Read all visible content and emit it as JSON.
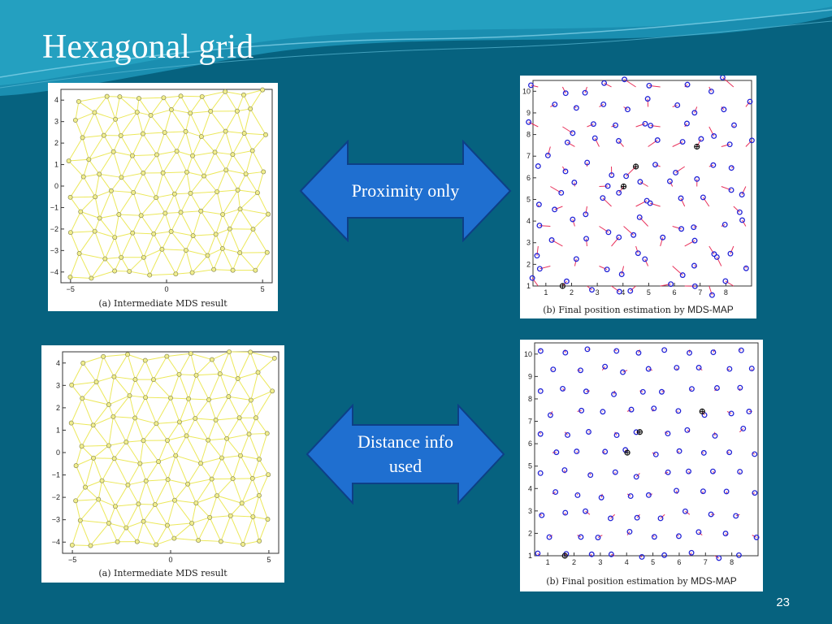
{
  "slide": {
    "title": "Hexagonal grid",
    "page_number": "23",
    "colors": {
      "background": "#06627f",
      "arrow_fill": "#1f6fd0",
      "arrow_stroke": "#0d3f86"
    }
  },
  "arrows": [
    {
      "label": "Proximity only"
    },
    {
      "label": "Distance info used"
    }
  ],
  "figures": {
    "mds_top": {
      "caption": "(a) Intermediate MDS result"
    },
    "mds_bottom": {
      "caption": "(a) Intermediate MDS result"
    },
    "map_top": {
      "caption_prefix": "(b) Final position estimation by",
      "caption_method": "MDS-MAP"
    },
    "map_bottom": {
      "caption_prefix": "(b) Final position estimation by",
      "caption_method": "MDS-MAP"
    }
  },
  "chart_data": [
    {
      "type": "scatter",
      "subtype": "network-graph",
      "xlim": [
        -5.5,
        5.5
      ],
      "ylim": [
        -4.5,
        4.5
      ],
      "xticks": [
        "-5",
        "0",
        "5"
      ],
      "yticks": [
        "4",
        "3",
        "2",
        "1",
        "0",
        "-1",
        "-2",
        "-3",
        "-4"
      ],
      "point_color": "#f2ef8e",
      "edge_color": "#ece85a"
    },
    {
      "type": "scatter",
      "xlim": [
        0.5,
        9
      ],
      "ylim": [
        1,
        10.5
      ],
      "xticks": [
        "1",
        "2",
        "3",
        "4",
        "5",
        "6",
        "7",
        "8"
      ],
      "yticks": [
        "10",
        "9",
        "8",
        "7",
        "6",
        "5",
        "4",
        "3",
        "2",
        "1"
      ],
      "estimate_color": "#2424d6",
      "error_color": "#e8305a",
      "anchors_marked": 4
    },
    {
      "type": "scatter",
      "subtype": "network-graph",
      "xlim": [
        -5.5,
        5.5
      ],
      "ylim": [
        -4.5,
        4.5
      ],
      "xticks": [
        "-5",
        "0",
        "5"
      ],
      "yticks": [
        "4",
        "3",
        "2",
        "1",
        "0",
        "-1",
        "-2",
        "-3",
        "-4"
      ],
      "point_color": "#f2ef8e",
      "edge_color": "#ece85a"
    },
    {
      "type": "scatter",
      "xlim": [
        0.5,
        9
      ],
      "ylim": [
        1,
        10.5
      ],
      "xticks": [
        "1",
        "2",
        "3",
        "4",
        "5",
        "6",
        "7",
        "8"
      ],
      "yticks": [
        "10",
        "9",
        "8",
        "7",
        "6",
        "5",
        "4",
        "3",
        "2",
        "1"
      ],
      "estimate_color": "#2424d6",
      "error_color": "#e8305a",
      "anchors_marked": 4
    }
  ]
}
